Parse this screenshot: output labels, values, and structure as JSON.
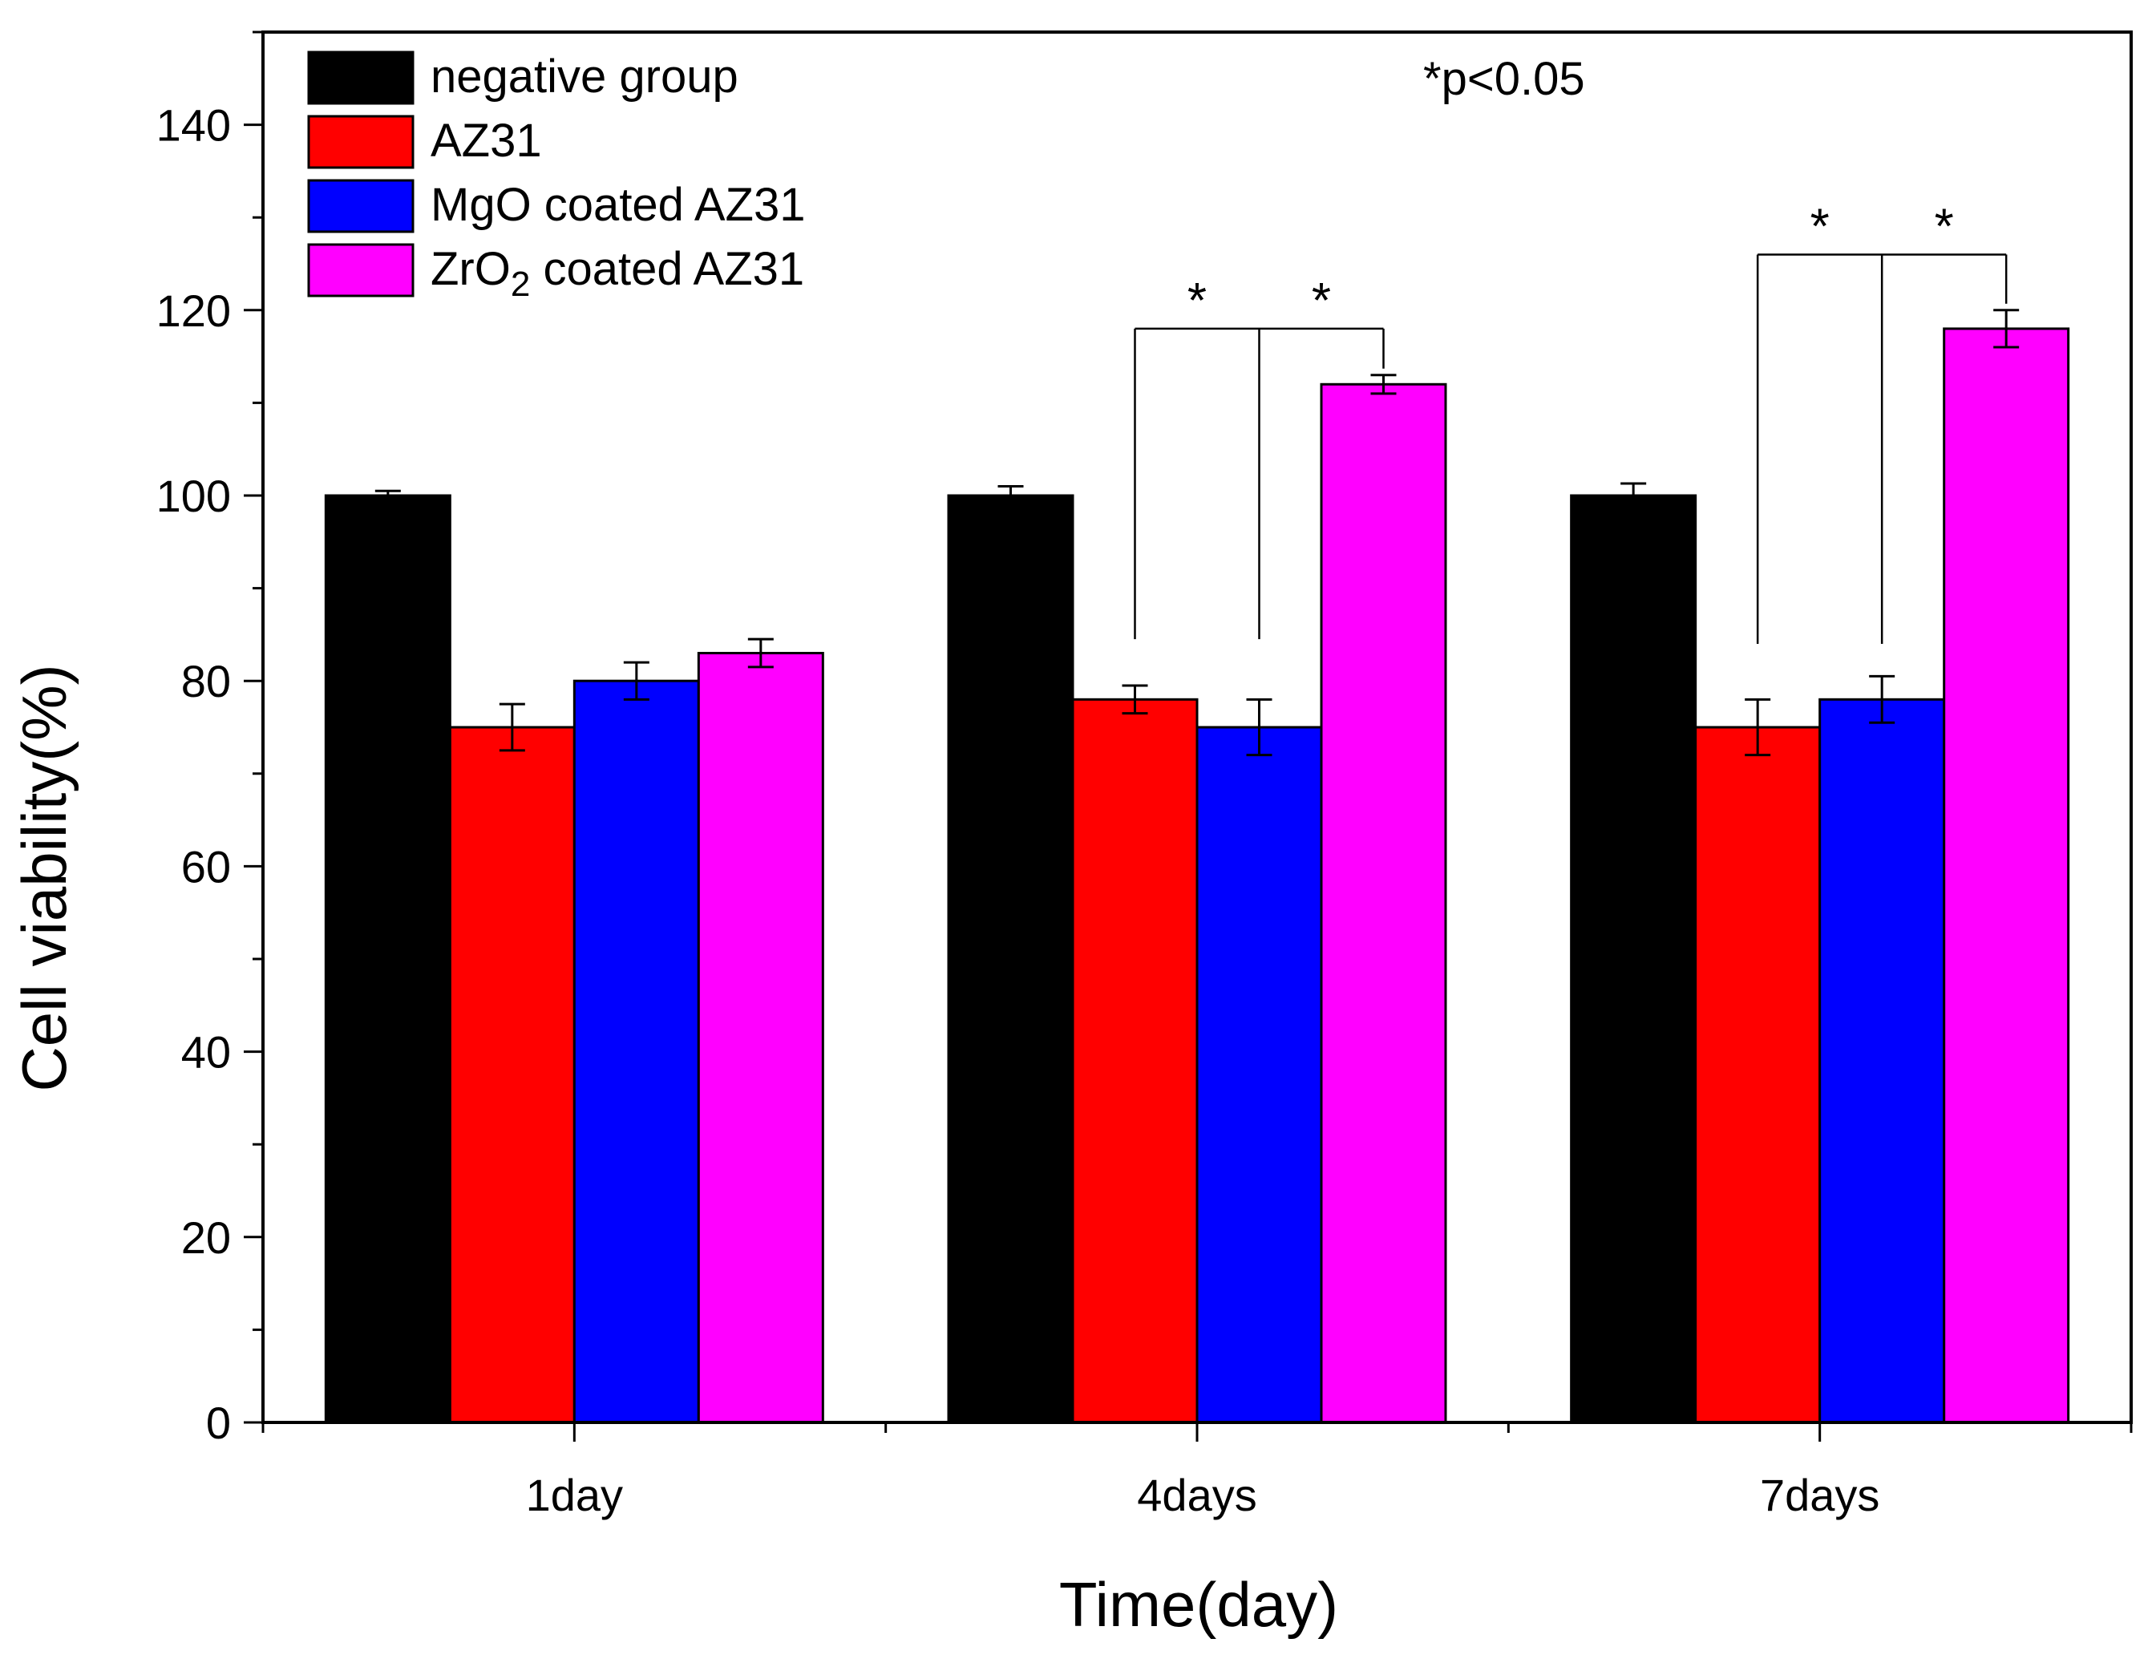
{
  "chart_data": {
    "type": "bar",
    "categories": [
      "1day",
      "4days",
      "7days"
    ],
    "series": [
      {
        "name": "negative group",
        "color": "#000000",
        "values": [
          100,
          100,
          100
        ],
        "errors": [
          0.5,
          1,
          1.3
        ]
      },
      {
        "name": "AZ31",
        "color": "#ff0000",
        "values": [
          75,
          78,
          75
        ],
        "errors": [
          2.5,
          1.5,
          3
        ]
      },
      {
        "name": "MgO coated AZ31",
        "color": "#0000ff",
        "values": [
          80,
          75,
          78
        ],
        "errors": [
          2,
          3,
          2.5
        ]
      },
      {
        "name": "ZrO2 coated AZ31",
        "name_main": "ZrO",
        "name_sub": "2",
        "name_rest": " coated AZ31",
        "color": "#ff00ff",
        "values": [
          83,
          112,
          118
        ],
        "errors": [
          1.5,
          1,
          2
        ]
      }
    ],
    "xlabel": "Time(day)",
    "ylabel": "Cell viability(%)",
    "ylim": [
      0,
      150
    ],
    "yticks": [
      0,
      20,
      40,
      60,
      80,
      100,
      120,
      140
    ],
    "annotation": "*p<0.05",
    "significance": [
      {
        "category": "4days",
        "from": [
          "AZ31",
          "MgO coated AZ31"
        ],
        "to": "ZrO2 coated AZ31",
        "marks": [
          "*",
          "*"
        ],
        "level": 118,
        "drop_to": 84.5
      },
      {
        "category": "7days",
        "from": [
          "AZ31",
          "MgO coated AZ31"
        ],
        "to": "ZrO2 coated AZ31",
        "marks": [
          "*",
          "*"
        ],
        "level": 126,
        "drop_to": 84
      }
    ]
  }
}
